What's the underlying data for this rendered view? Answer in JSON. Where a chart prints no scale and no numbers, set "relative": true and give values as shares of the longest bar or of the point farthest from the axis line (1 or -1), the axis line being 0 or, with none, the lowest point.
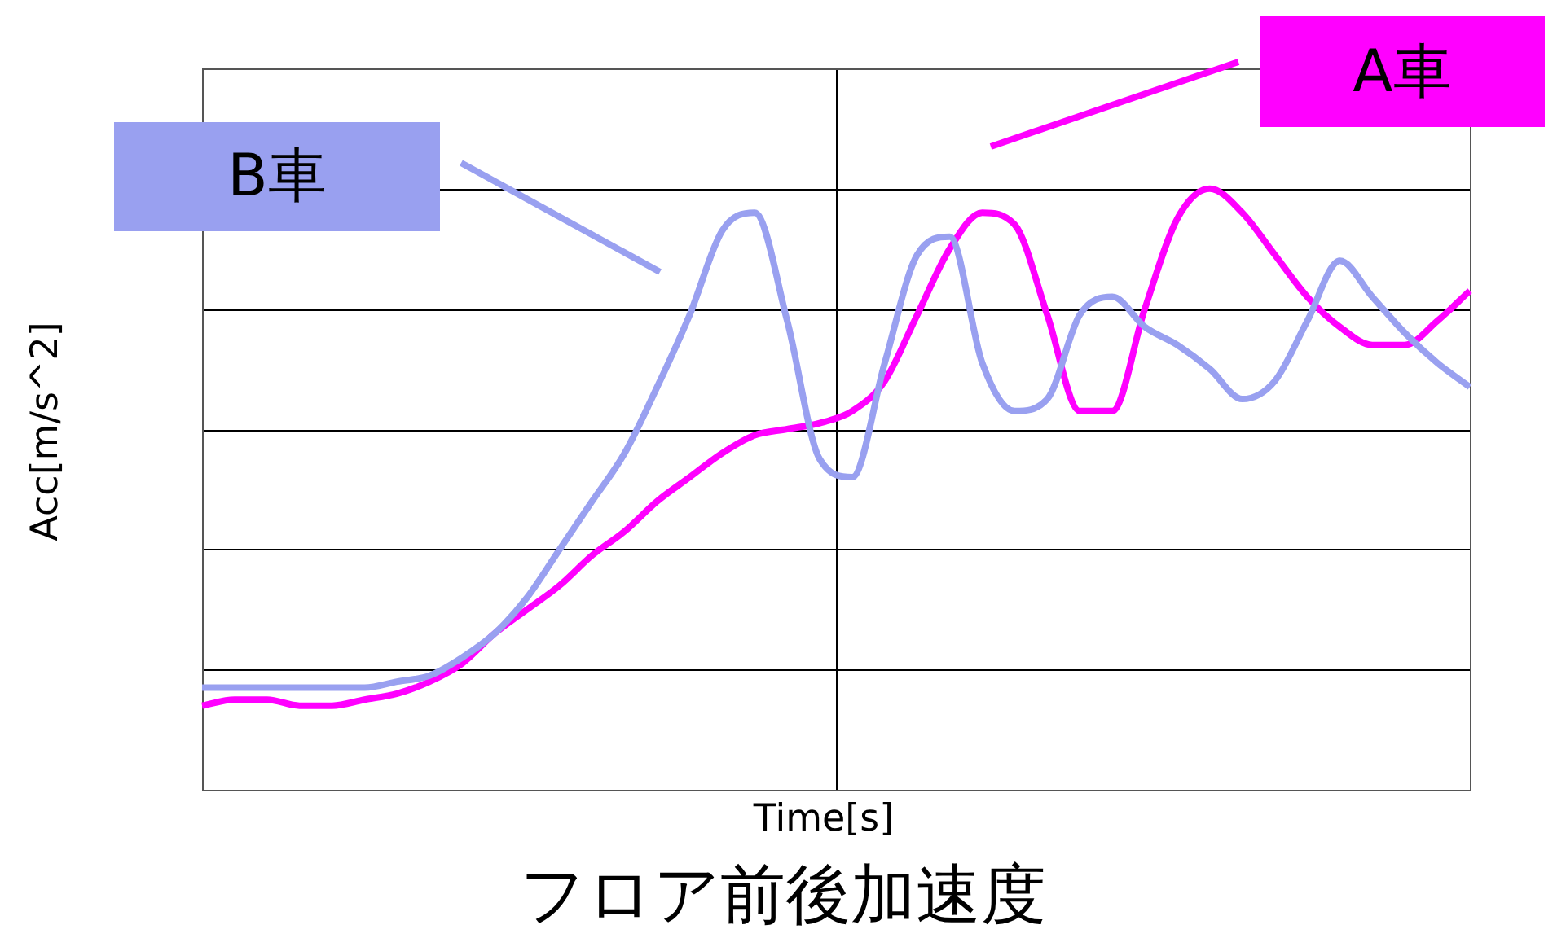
{
  "chart_data": {
    "type": "line",
    "title": "フロア前後加速度",
    "xlabel": "Time[s]",
    "ylabel": "Acc[m/s^2]",
    "relative": true,
    "grid": true,
    "legend": "top",
    "marker": "none",
    "line_style": "solid",
    "categories": [
      null,
      null,
      null,
      null,
      null,
      null,
      null,
      null,
      null,
      null,
      null,
      null,
      null,
      null,
      null,
      null,
      null,
      null,
      null,
      null,
      null,
      null,
      null,
      null,
      null,
      null,
      null,
      null,
      null,
      null,
      null,
      null,
      null,
      null,
      null,
      null,
      null,
      null,
      null,
      null
    ],
    "series": [
      {
        "name": "B車",
        "color": "#99a0f0",
        "values": [
          0.17,
          0.17,
          0.17,
          0.17,
          0.17,
          0.17,
          0.18,
          0.19,
          0.22,
          0.26,
          0.32,
          0.4,
          0.48,
          0.56,
          0.67,
          0.79,
          0.93,
          0.96,
          0.78,
          0.55,
          0.52,
          0.71,
          0.89,
          0.92,
          0.71,
          0.63,
          0.65,
          0.79,
          0.82,
          0.77,
          0.74,
          0.7,
          0.65,
          0.68,
          0.78,
          0.88,
          0.82,
          0.76,
          0.71,
          0.67
        ]
      },
      {
        "name": "A車",
        "color": "#ff00ff",
        "values": [
          0.14,
          0.15,
          0.15,
          0.14,
          0.14,
          0.15,
          0.16,
          0.18,
          0.21,
          0.26,
          0.3,
          0.34,
          0.39,
          0.43,
          0.48,
          0.52,
          0.56,
          0.59,
          0.6,
          0.61,
          0.63,
          0.68,
          0.79,
          0.9,
          0.96,
          0.94,
          0.79,
          0.63,
          0.63,
          0.8,
          0.95,
          1,
          0.96,
          0.89,
          0.82,
          0.77,
          0.74,
          0.74,
          0.78,
          0.83
        ]
      }
    ]
  }
}
